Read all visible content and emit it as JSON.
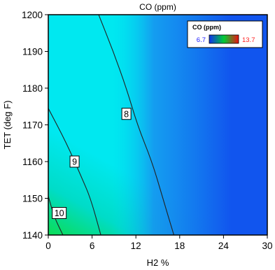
{
  "chart_data": {
    "type": "heatmap",
    "title": "CO (ppm)",
    "xlabel": "H2 %",
    "ylabel": "TET (deg F)",
    "xlim": [
      0,
      30
    ],
    "ylim": [
      1140,
      1200
    ],
    "x_ticks": [
      "0",
      "6",
      "12",
      "18",
      "24",
      "30"
    ],
    "y_ticks": [
      "1140",
      "1150",
      "1160",
      "1170",
      "1180",
      "1190",
      "1200"
    ],
    "color_scale": {
      "min": 6.7,
      "max": 13.7,
      "min_label": "6.7",
      "max_label": "13.7",
      "min_color": "#1155ee",
      "mid_color": "#00e8f0",
      "max_color": "#11dd22",
      "legend_title": "CO (ppm)",
      "legend_position": "top-right"
    },
    "contours": [
      {
        "level": 10,
        "label": "10",
        "points": [
          [
            0,
            1150.6
          ],
          [
            0.8,
            1145
          ],
          [
            2.0,
            1140
          ]
        ]
      },
      {
        "level": 9,
        "label": "9",
        "points": [
          [
            0,
            1174.5
          ],
          [
            2.5,
            1165
          ],
          [
            4.5,
            1156
          ],
          [
            5.8,
            1150
          ],
          [
            7.2,
            1140
          ]
        ]
      },
      {
        "level": 8,
        "label": "8",
        "points": [
          [
            6.9,
            1200
          ],
          [
            8.9,
            1190
          ],
          [
            10.7,
            1180
          ],
          [
            12.2,
            1170
          ],
          [
            14.2,
            1160
          ],
          [
            15.7,
            1150
          ],
          [
            17.2,
            1140
          ]
        ]
      }
    ],
    "contour_label_positions": [
      {
        "label": "8",
        "x": 10.7,
        "y": 1173
      },
      {
        "label": "9",
        "x": 3.6,
        "y": 1160
      },
      {
        "label": "10",
        "x": 1.5,
        "y": 1146
      }
    ],
    "grid": false
  }
}
